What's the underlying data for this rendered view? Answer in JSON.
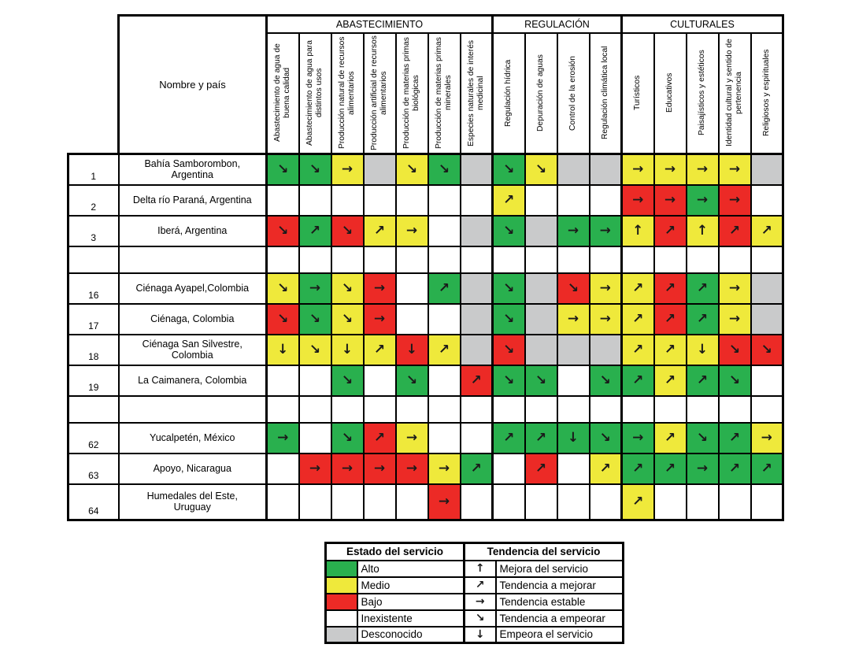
{
  "chart_data": {
    "type": "heatmap",
    "row_header": "Nombre y país",
    "groups": [
      {
        "label": "ABASTECIMIENTO",
        "span": 7
      },
      {
        "label": "REGULACIÓN",
        "span": 4
      },
      {
        "label": "CULTURALES",
        "span": 5
      }
    ],
    "columns": [
      "Abastecimiento de agua de buena calidad",
      "Abastecimiento de agua para distintos usos",
      "Producción natural de recursos alimentarios",
      "Producción artificial de recursos alimentarios",
      "Producción de materias primas biológicas",
      "Producción de materias primas minerales",
      "Especies naturales de interés medicinal",
      "Regulación hídrica",
      "Depuración de aguas",
      "Control de la erosión",
      "Regulación climática local",
      "Turísticos",
      "Educativos",
      "Paisajísticos y estéticos",
      "Identidad cultural y sentido de pertenencia",
      "Religiosos y espirituales"
    ],
    "states": {
      "G": {
        "label": "Alto",
        "color": "#29b04e"
      },
      "M": {
        "label": "Medio",
        "color": "#efe93b"
      },
      "B": {
        "label": "Bajo",
        "color": "#ec2a26"
      },
      "I": {
        "label": "Inexistente",
        "color": "#ffffff"
      },
      "D": {
        "label": "Desconocido",
        "color": "#c9cacb"
      }
    },
    "trends": {
      "up": {
        "glyph": "↑",
        "label": "Mejora del servicio"
      },
      "ne": {
        "glyph": "↗",
        "label": "Tendencia a mejorar"
      },
      "e": {
        "glyph": "→",
        "label": "Tendencia estable"
      },
      "se": {
        "glyph": "↘",
        "label": "Tendencia a empeorar"
      },
      "d": {
        "glyph": "↓",
        "label": "Empeora el servicio"
      }
    },
    "rows": [
      {
        "num": "1",
        "name": "Bahía Samborombon, Argentina",
        "cells": [
          "G:se",
          "G:se",
          "M:e",
          "D:",
          "M:se",
          "G:se",
          "D:",
          "G:se",
          "M:se",
          "D:",
          "D:",
          "M:e",
          "M:e",
          "M:e",
          "M:e",
          "D:"
        ]
      },
      {
        "num": "2",
        "name": "Delta río Paraná, Argentina",
        "cells": [
          "I:",
          "I:",
          "I:",
          "I:",
          "I:",
          "I:",
          "I:",
          "M:ne",
          "I:",
          "I:",
          "I:",
          "B:e",
          "B:e",
          "G:e",
          "B:e",
          "I:"
        ]
      },
      {
        "num": "3",
        "name": "Iberá, Argentina",
        "cells": [
          "B:se",
          "G:ne",
          "B:se",
          "M:ne",
          "M:e",
          "I:",
          "D:",
          "G:se",
          "D:",
          "G:e",
          "G:e",
          "M:up",
          "B:ne",
          "M:up",
          "B:ne",
          "M:ne"
        ]
      },
      {
        "num": "",
        "name": "",
        "cells": []
      },
      {
        "num": "16",
        "name": "Ciénaga Ayapel,Colombia",
        "cells": [
          "M:se",
          "G:e",
          "M:se",
          "B:e",
          "I:",
          "G:ne",
          "D:",
          "G:se",
          "D:",
          "B:se",
          "M:e",
          "M:ne",
          "B:ne",
          "G:ne",
          "M:e",
          "D:"
        ]
      },
      {
        "num": "17",
        "name": "Ciénaga, Colombia",
        "cells": [
          "B:se",
          "G:se",
          "M:se",
          "B:e",
          "I:",
          "I:",
          "D:",
          "G:se",
          "D:",
          "M:e",
          "M:e",
          "M:ne",
          "B:ne",
          "G:ne",
          "M:e",
          "D:"
        ]
      },
      {
        "num": "18",
        "name": "Ciénaga San Silvestre, Colombia",
        "cells": [
          "M:d",
          "M:se",
          "M:d",
          "M:ne",
          "B:d",
          "M:ne",
          "D:",
          "B:se",
          "D:",
          "D:",
          "D:",
          "M:ne",
          "M:ne",
          "M:d",
          "B:se",
          "B:se"
        ]
      },
      {
        "num": "19",
        "name": "La Caimanera, Colombia",
        "cells": [
          "I:",
          "I:",
          "G:se",
          "I:",
          "G:se",
          "I:",
          "B:ne",
          "G:se",
          "G:se",
          "I:",
          "G:se",
          "G:ne",
          "M:ne",
          "G:ne",
          "G:se",
          "I:"
        ]
      },
      {
        "num": "",
        "name": "",
        "cells": []
      },
      {
        "num": "62",
        "name": "Yucalpetén, México",
        "cells": [
          "G:e",
          "I:",
          "G:se",
          "B:ne",
          "M:e",
          "I:",
          "I:",
          "G:ne",
          "G:ne",
          "G:d",
          "G:se",
          "G:e",
          "M:ne",
          "G:se",
          "G:ne",
          "M:e"
        ]
      },
      {
        "num": "63",
        "name": "Apoyo, Nicaragua",
        "cells": [
          "I:",
          "B:e",
          "B:e",
          "B:e",
          "B:e",
          "M:e",
          "G:ne",
          "I:",
          "B:ne",
          "I:",
          "M:ne",
          "G:ne",
          "G:ne",
          "G:e",
          "G:ne",
          "G:ne"
        ]
      },
      {
        "num": "64",
        "name": "Humedales del Este, Uruguay",
        "cells": [
          "I:",
          "I:",
          "I:",
          "I:",
          "I:",
          "B:e",
          "I:",
          "I:",
          "I:",
          "I:",
          "I:",
          "M:ne",
          "I:",
          "I:",
          "I:",
          "I:"
        ]
      }
    ]
  },
  "legend": {
    "estado_header": "Estado del servicio",
    "tendencia_header": "Tendencia del servicio",
    "estado_order": [
      "G",
      "M",
      "B",
      "I",
      "D"
    ],
    "tendencia_order": [
      "up",
      "ne",
      "e",
      "se",
      "d"
    ]
  }
}
